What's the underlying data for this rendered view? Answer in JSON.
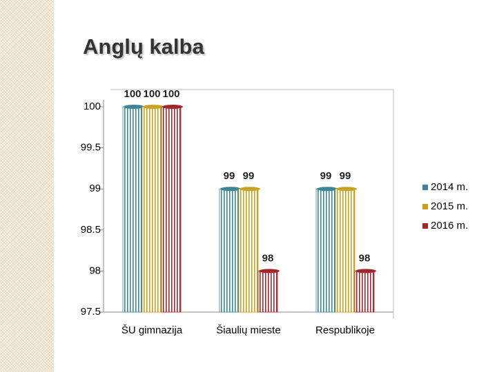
{
  "chart_data": {
    "type": "bar",
    "title": "Anglų kalba",
    "categories": [
      "ŠU gimnazija",
      "Šiaulių mieste",
      "Respublikoje"
    ],
    "series": [
      {
        "name": "2014 m.",
        "color": "#3b8597",
        "values": [
          100,
          99,
          99
        ]
      },
      {
        "name": "2015 m.",
        "color": "#c9a21f",
        "values": [
          100,
          99,
          99
        ]
      },
      {
        "name": "2016 m.",
        "color": "#a2262b",
        "values": [
          100,
          98,
          98
        ]
      }
    ],
    "ylim": [
      97.5,
      100
    ],
    "yticks": [
      97.5,
      98,
      98.5,
      99,
      99.5,
      100
    ],
    "legend": "right"
  }
}
